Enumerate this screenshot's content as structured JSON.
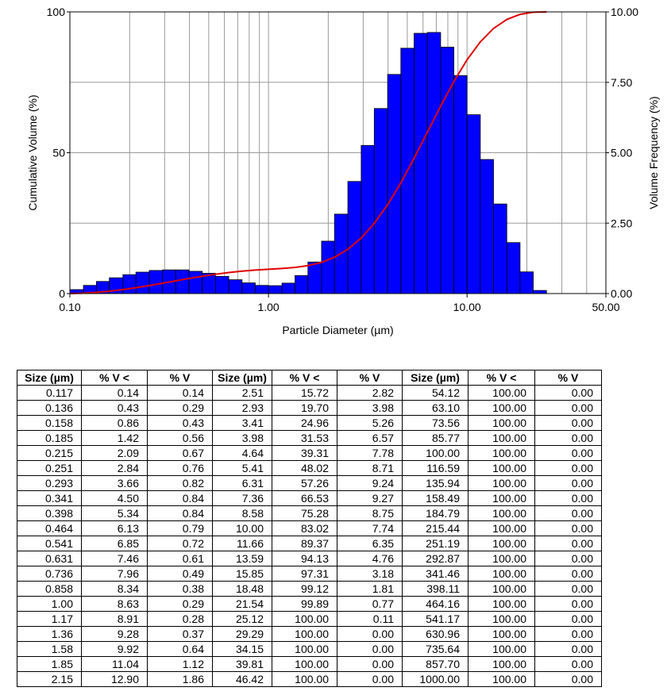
{
  "chart_data": {
    "type": "bar",
    "xlabel": "Particle Diameter (µm)",
    "ylabel_left": "Cumulative Volume (%)",
    "ylabel_right": "Volume Frequency (%)",
    "x_scale": "log",
    "xlim": [
      0.1,
      50
    ],
    "x_ticks": [
      "0.10",
      "1.00",
      "10.00",
      "50.00"
    ],
    "ylim_left": [
      0,
      100
    ],
    "y_ticks_left": [
      "0",
      "50",
      "100"
    ],
    "ylim_right": [
      0,
      10
    ],
    "y_ticks_right": [
      "0.00",
      "2.50",
      "5.00",
      "7.50",
      "10.00"
    ],
    "grid": true,
    "bar_color": "#0000ff",
    "bar_edge_color": "#000000",
    "line_color": "#e00000",
    "series": [
      {
        "type": "histogram",
        "axis": "right",
        "edges": [
          0.1,
          0.117,
          0.136,
          0.158,
          0.185,
          0.215,
          0.251,
          0.293,
          0.341,
          0.398,
          0.464,
          0.541,
          0.631,
          0.736,
          0.858,
          1.0,
          1.17,
          1.36,
          1.58,
          1.85,
          2.15,
          2.51,
          2.93,
          3.41,
          3.98,
          4.64,
          5.41,
          6.31,
          7.36,
          8.58,
          10.0,
          11.66,
          13.59,
          15.85,
          18.48,
          21.54,
          25.12,
          29.29,
          34.15,
          39.81,
          46.42
        ],
        "values": [
          0.14,
          0.29,
          0.43,
          0.56,
          0.67,
          0.76,
          0.82,
          0.84,
          0.84,
          0.79,
          0.72,
          0.61,
          0.49,
          0.38,
          0.29,
          0.28,
          0.37,
          0.64,
          1.12,
          1.86,
          2.82,
          3.98,
          5.26,
          6.57,
          7.78,
          8.71,
          9.24,
          9.27,
          8.75,
          7.74,
          6.35,
          4.76,
          3.18,
          1.81,
          0.77,
          0.11,
          0,
          0,
          0,
          0
        ]
      },
      {
        "type": "line",
        "axis": "left",
        "x": [
          0.1,
          0.117,
          0.136,
          0.158,
          0.185,
          0.215,
          0.251,
          0.293,
          0.341,
          0.398,
          0.464,
          0.541,
          0.631,
          0.736,
          0.858,
          1.0,
          1.17,
          1.36,
          1.58,
          1.85,
          2.15,
          2.51,
          2.93,
          3.41,
          3.98,
          4.64,
          5.41,
          6.31,
          7.36,
          8.58,
          10.0,
          11.66,
          13.59,
          15.85,
          18.48,
          21.54,
          25.12
        ],
        "y": [
          0,
          0.14,
          0.43,
          0.86,
          1.42,
          2.09,
          2.84,
          3.66,
          4.5,
          5.34,
          6.13,
          6.85,
          7.46,
          7.96,
          8.34,
          8.63,
          8.91,
          9.28,
          9.92,
          11.04,
          12.9,
          15.72,
          19.7,
          24.96,
          31.53,
          39.31,
          48.02,
          57.26,
          66.53,
          75.28,
          83.02,
          89.37,
          94.13,
          97.31,
          99.12,
          99.89,
          100.0
        ]
      }
    ]
  },
  "table": {
    "headers": [
      "Size (µm)",
      "% V <",
      "% V",
      "Size (µm)",
      "% V <",
      "% V",
      "Size (µm)",
      "% V <",
      "% V"
    ],
    "rows": [
      [
        "0.117",
        "0.14",
        "0.14",
        "2.51",
        "15.72",
        "2.82",
        "54.12",
        "100.00",
        "0.00"
      ],
      [
        "0.136",
        "0.43",
        "0.29",
        "2.93",
        "19.70",
        "3.98",
        "63.10",
        "100.00",
        "0.00"
      ],
      [
        "0.158",
        "0.86",
        "0.43",
        "3.41",
        "24.96",
        "5.26",
        "73.56",
        "100.00",
        "0.00"
      ],
      [
        "0.185",
        "1.42",
        "0.56",
        "3.98",
        "31.53",
        "6.57",
        "85.77",
        "100.00",
        "0.00"
      ],
      [
        "0.215",
        "2.09",
        "0.67",
        "4.64",
        "39.31",
        "7.78",
        "100.00",
        "100.00",
        "0.00"
      ],
      [
        "0.251",
        "2.84",
        "0.76",
        "5.41",
        "48.02",
        "8.71",
        "116.59",
        "100.00",
        "0.00"
      ],
      [
        "0.293",
        "3.66",
        "0.82",
        "6.31",
        "57.26",
        "9.24",
        "135.94",
        "100.00",
        "0.00"
      ],
      [
        "0.341",
        "4.50",
        "0.84",
        "7.36",
        "66.53",
        "9.27",
        "158.49",
        "100.00",
        "0.00"
      ],
      [
        "0.398",
        "5.34",
        "0.84",
        "8.58",
        "75.28",
        "8.75",
        "184.79",
        "100.00",
        "0.00"
      ],
      [
        "0.464",
        "6.13",
        "0.79",
        "10.00",
        "83.02",
        "7.74",
        "215.44",
        "100.00",
        "0.00"
      ],
      [
        "0.541",
        "6.85",
        "0.72",
        "11.66",
        "89.37",
        "6.35",
        "251.19",
        "100.00",
        "0.00"
      ],
      [
        "0.631",
        "7.46",
        "0.61",
        "13.59",
        "94.13",
        "4.76",
        "292.87",
        "100.00",
        "0.00"
      ],
      [
        "0.736",
        "7.96",
        "0.49",
        "15.85",
        "97.31",
        "3.18",
        "341.46",
        "100.00",
        "0.00"
      ],
      [
        "0.858",
        "8.34",
        "0.38",
        "18.48",
        "99.12",
        "1.81",
        "398.11",
        "100.00",
        "0.00"
      ],
      [
        "1.00",
        "8.63",
        "0.29",
        "21.54",
        "99.89",
        "0.77",
        "464.16",
        "100.00",
        "0.00"
      ],
      [
        "1.17",
        "8.91",
        "0.28",
        "25.12",
        "100.00",
        "0.11",
        "541.17",
        "100.00",
        "0.00"
      ],
      [
        "1.36",
        "9.28",
        "0.37",
        "29.29",
        "100.00",
        "0.00",
        "630.96",
        "100.00",
        "0.00"
      ],
      [
        "1.58",
        "9.92",
        "0.64",
        "34.15",
        "100.00",
        "0.00",
        "735.64",
        "100.00",
        "0.00"
      ],
      [
        "1.85",
        "11.04",
        "1.12",
        "39.81",
        "100.00",
        "0.00",
        "857.70",
        "100.00",
        "0.00"
      ],
      [
        "2.15",
        "12.90",
        "1.86",
        "46.42",
        "100.00",
        "0.00",
        "1000.00",
        "100.00",
        "0.00"
      ]
    ]
  }
}
